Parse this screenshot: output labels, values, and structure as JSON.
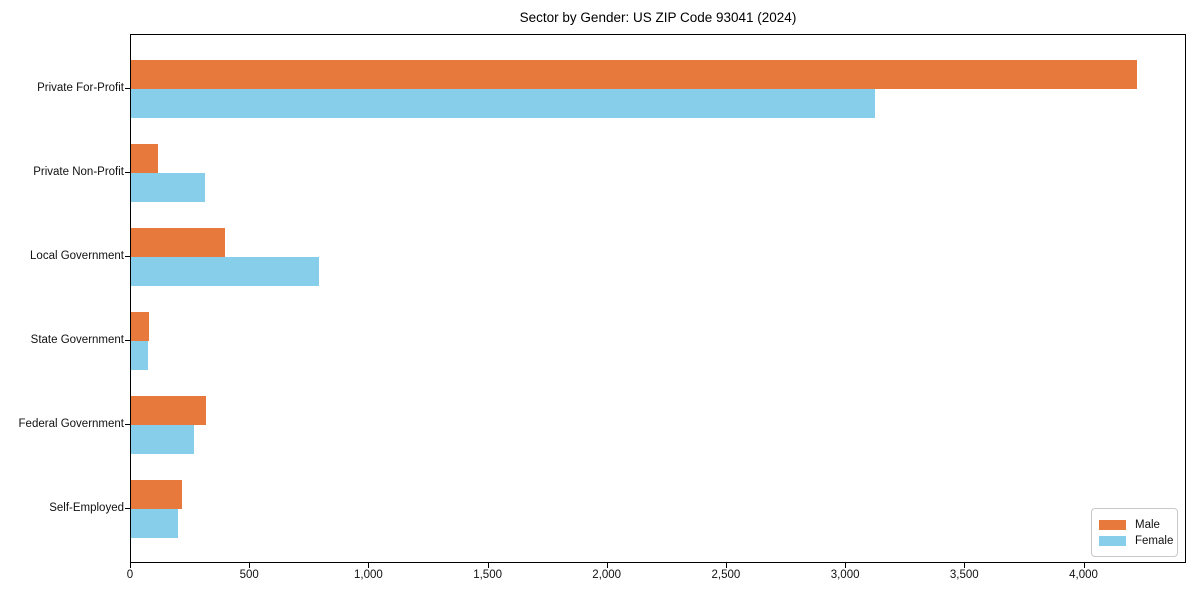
{
  "title": "Sector by Gender: US ZIP Code 93041 (2024)",
  "colors": {
    "male": "#e8793c",
    "female": "#87ceeb",
    "axis": "#000000",
    "legend_border": "#c9c9c9"
  },
  "legend": {
    "position": "lower right",
    "items": [
      {
        "label": "Male",
        "color": "#e8793c"
      },
      {
        "label": "Female",
        "color": "#87ceeb"
      }
    ]
  },
  "chart_data": {
    "type": "bar",
    "orientation": "horizontal",
    "title": "Sector by Gender: US ZIP Code 93041 (2024)",
    "xlabel": "",
    "ylabel": "",
    "grid": false,
    "categories": [
      "Private For-Profit",
      "Private Non-Profit",
      "Local Government",
      "State Government",
      "Federal Government",
      "Self-Employed"
    ],
    "series": [
      {
        "name": "Male",
        "color": "#e8793c",
        "values": [
          4220,
          115,
          395,
          75,
          315,
          215
        ]
      },
      {
        "name": "Female",
        "color": "#87ceeb",
        "values": [
          3120,
          310,
          790,
          70,
          265,
          195
        ]
      }
    ],
    "xlim": [
      0,
      4430
    ],
    "x_ticks": [
      0,
      500,
      1000,
      1500,
      2000,
      2500,
      3000,
      3500,
      4000
    ],
    "x_tick_labels": [
      "0",
      "500",
      "1,000",
      "1,500",
      "2,000",
      "2,500",
      "3,000",
      "3,500",
      "4,000"
    ],
    "legend_position": "lower right"
  }
}
